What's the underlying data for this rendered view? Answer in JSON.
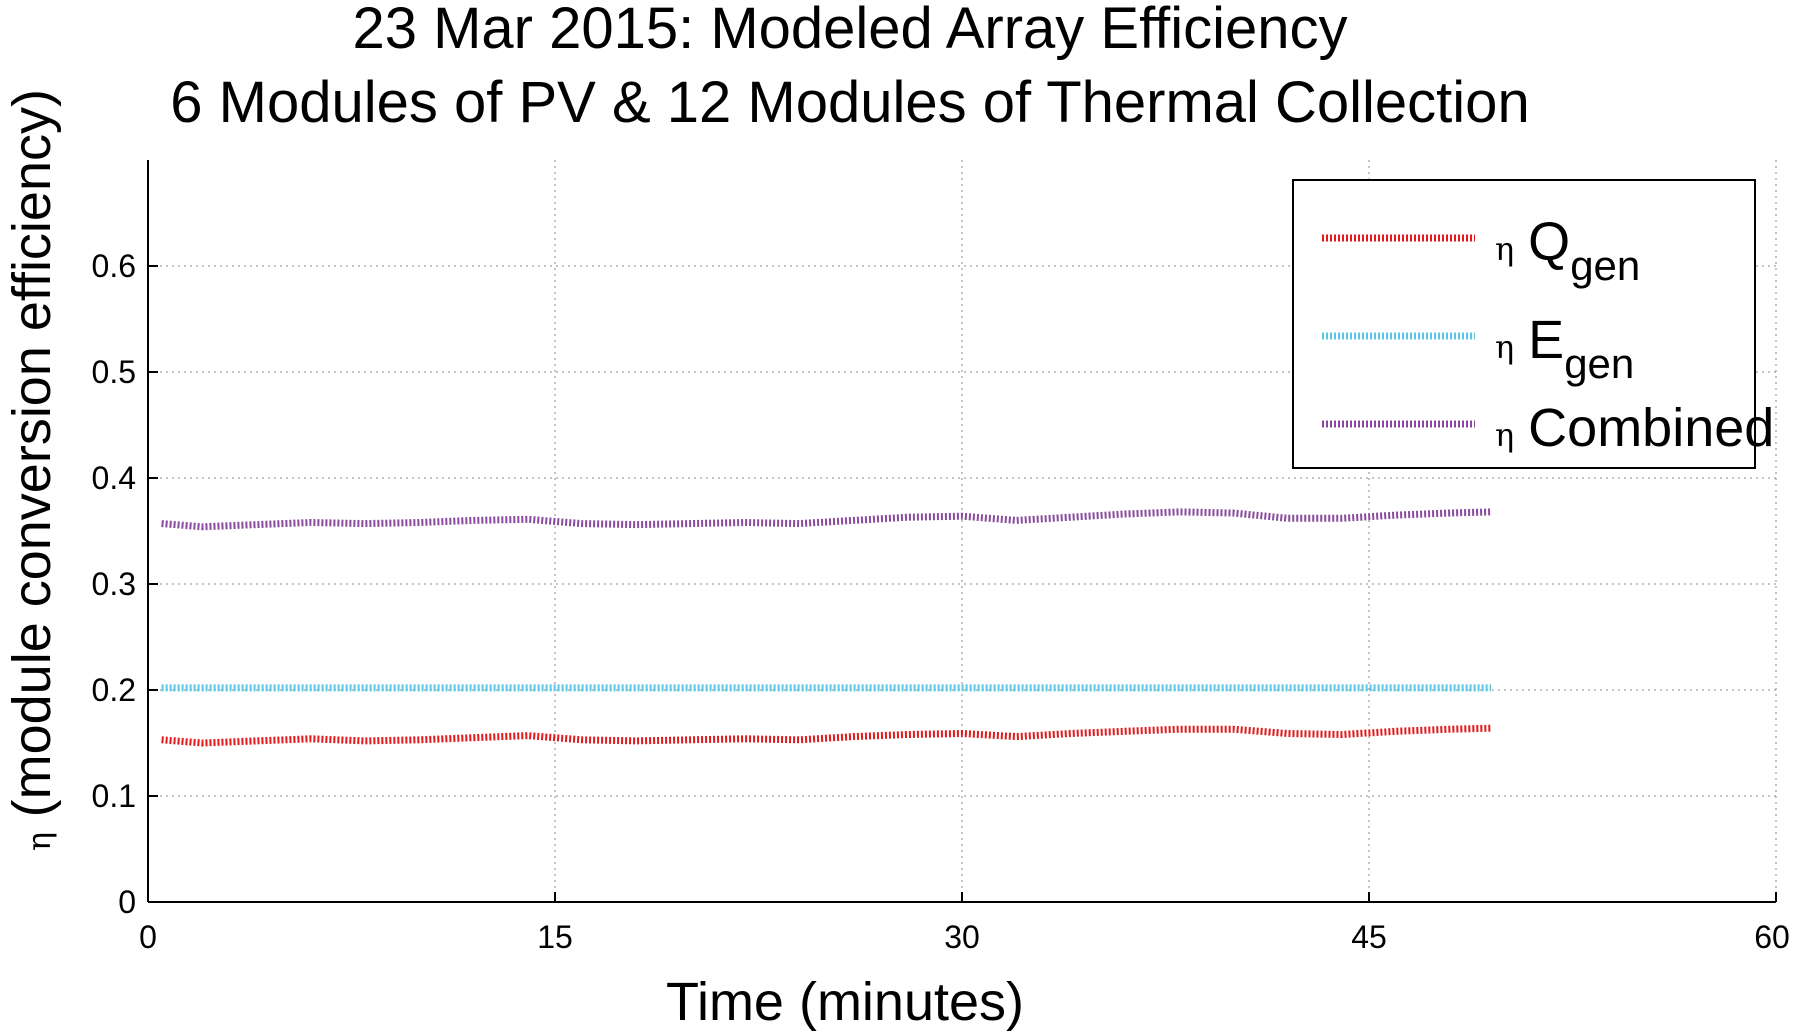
{
  "chart_data": {
    "type": "line",
    "title": "23 Mar 2015: Modeled Array Efficiency",
    "subtitle": "6 Modules of PV & 12 Modules of Thermal Collection",
    "xlabel": "Time (minutes)",
    "ylabel": {
      "symbol": "η",
      "text": "(module conversion efficiency)"
    },
    "xlim": [
      0,
      60
    ],
    "ylim": [
      0,
      0.7
    ],
    "xticks": [
      0,
      15,
      30,
      45,
      60
    ],
    "xtick_labels": [
      "0",
      "15",
      "30",
      "45",
      "60"
    ],
    "yticks": [
      0,
      0.1,
      0.2,
      0.3,
      0.4,
      0.5,
      0.6
    ],
    "ytick_labels": [
      "0",
      "0.1",
      "0.2",
      "0.3",
      "0.4",
      "0.5",
      "0.6"
    ],
    "grid": true,
    "legend_position": "top-right",
    "series": [
      {
        "name": "η Q_gen",
        "legend": {
          "symbol": "η",
          "main": "Q",
          "sub": "gen"
        },
        "color": "#e31a1c",
        "x": [
          0.5,
          2,
          4,
          6,
          8,
          10,
          12,
          14,
          16,
          18,
          20,
          22,
          24,
          26,
          28,
          30,
          32,
          34,
          36,
          38,
          40,
          42,
          44,
          46,
          48,
          49.5
        ],
        "y": [
          0.153,
          0.15,
          0.152,
          0.154,
          0.152,
          0.153,
          0.155,
          0.157,
          0.153,
          0.152,
          0.153,
          0.154,
          0.153,
          0.156,
          0.158,
          0.159,
          0.156,
          0.159,
          0.161,
          0.163,
          0.163,
          0.159,
          0.158,
          0.161,
          0.163,
          0.164
        ]
      },
      {
        "name": "η E_gen",
        "legend": {
          "symbol": "η",
          "main": "E",
          "sub": "gen"
        },
        "color": "#5bc8e0",
        "x": [
          0.5,
          10,
          20,
          30,
          40,
          49.5
        ],
        "y": [
          0.202,
          0.202,
          0.202,
          0.202,
          0.202,
          0.202
        ]
      },
      {
        "name": "η Combined",
        "legend": {
          "symbol": "η",
          "main": "Combined",
          "sub": ""
        },
        "color": "#8a4a9e",
        "x": [
          0.5,
          2,
          4,
          6,
          8,
          10,
          12,
          14,
          16,
          18,
          20,
          22,
          24,
          26,
          28,
          30,
          32,
          34,
          36,
          38,
          40,
          42,
          44,
          46,
          48,
          49.5
        ],
        "y": [
          0.357,
          0.354,
          0.356,
          0.358,
          0.357,
          0.358,
          0.36,
          0.361,
          0.357,
          0.356,
          0.357,
          0.358,
          0.357,
          0.36,
          0.363,
          0.364,
          0.36,
          0.363,
          0.366,
          0.368,
          0.367,
          0.362,
          0.362,
          0.365,
          0.367,
          0.368
        ]
      }
    ]
  }
}
